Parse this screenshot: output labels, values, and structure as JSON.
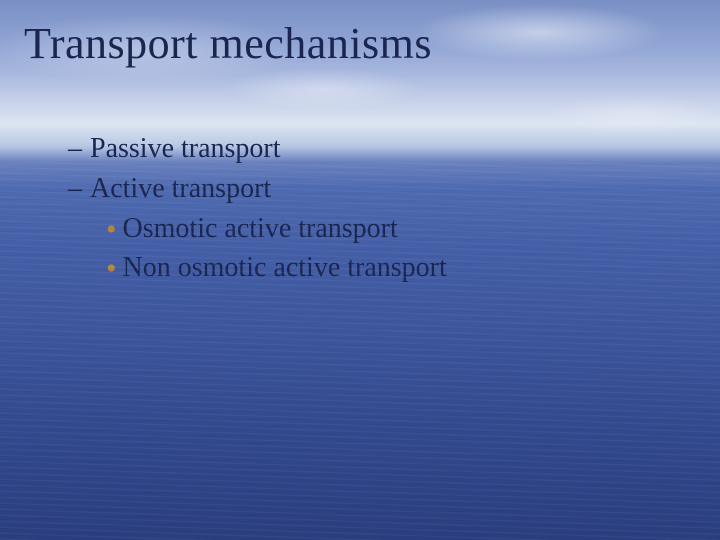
{
  "slide": {
    "title": "Transport mechanisms",
    "items": {
      "passive": "Passive transport",
      "active": "Active transport",
      "osmotic": "Osmotic active transport",
      "nonosmotic": "Non osmotic active transport"
    }
  },
  "style": {
    "title_color": "#1a2550",
    "text_color": "#1a2550",
    "bullet_color": "#b4873a",
    "title_fontsize": 44,
    "body_fontsize": 28,
    "font_family": "Georgia, Times New Roman, serif",
    "sky_top": "#7a8fc4",
    "sky_bottom": "#dde5f2",
    "water_top": "#4e6ab0",
    "water_bottom": "#2a3e7f",
    "horizon_pct": 30
  }
}
